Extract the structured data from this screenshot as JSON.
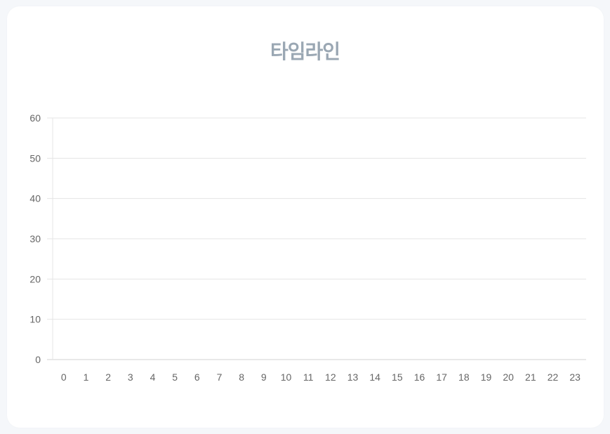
{
  "chart_data": {
    "type": "line",
    "title": "타임라인",
    "xlabel": "",
    "ylabel": "",
    "categories": [
      "0",
      "1",
      "2",
      "3",
      "4",
      "5",
      "6",
      "7",
      "8",
      "9",
      "10",
      "11",
      "12",
      "13",
      "14",
      "15",
      "16",
      "17",
      "18",
      "19",
      "20",
      "21",
      "22",
      "23"
    ],
    "series": [],
    "ylim": [
      0,
      60
    ],
    "yticks": [
      0,
      10,
      20,
      30,
      40,
      50,
      60
    ],
    "grid": true,
    "colors": {
      "title": "#9aa7b3",
      "grid": "#e5e5e5",
      "axis": "#d0d0d0",
      "tick_label": "#666666",
      "card": "#ffffff",
      "background": "#f5f7fa"
    }
  }
}
